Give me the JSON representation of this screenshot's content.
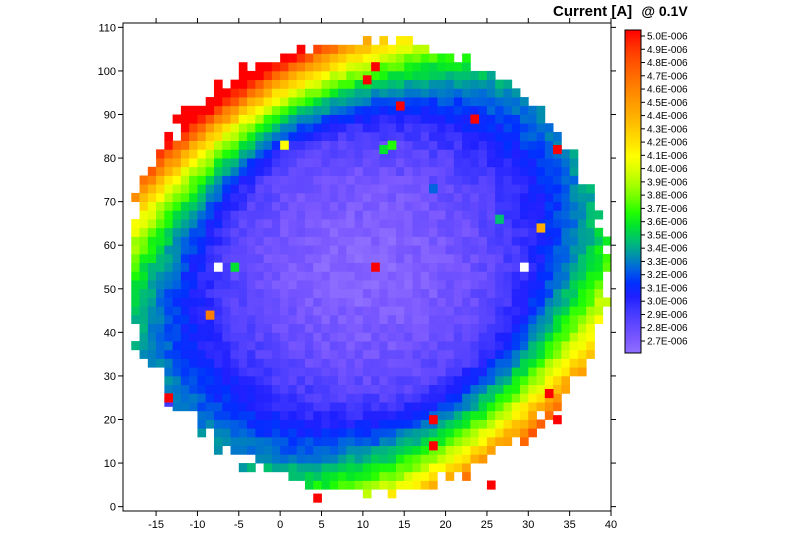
{
  "chart_data": {
    "type": "heatmap",
    "title": "Current [A]",
    "title_suffix": "@ 0.1V",
    "xlabel": "",
    "ylabel": "",
    "xlim": [
      -19,
      40
    ],
    "ylim": [
      -1,
      111
    ],
    "x_ticks": [
      -15,
      -10,
      -5,
      0,
      5,
      10,
      15,
      20,
      25,
      30,
      35,
      40
    ],
    "y_ticks": [
      0,
      10,
      20,
      30,
      40,
      50,
      60,
      70,
      80,
      90,
      100,
      110
    ],
    "grid": false,
    "wafer_map": {
      "center_x": 10.5,
      "center_y": 55,
      "radius_x": 29,
      "radius_y": 52,
      "cell_step_x": 1,
      "cell_step_y": 2,
      "value_min": 2.7e-06,
      "value_max": 5e-06,
      "description_values": "center approx 2.75E-006 rising to approx 3.4E-006 near edge; upper-left and lower-right edge regions approx 3.7E-006 to 5.0E-006"
    },
    "outliers": [
      {
        "x": -8,
        "y": 54,
        "value": null
      },
      {
        "x": 29,
        "y": 54,
        "value": null
      },
      {
        "x": 11,
        "y": 54,
        "value": 5e-06
      },
      {
        "x": -6,
        "y": 54,
        "value": 3.6e-06
      },
      {
        "x": -9,
        "y": 43,
        "value": 4.6e-06
      },
      {
        "x": 0,
        "y": 82,
        "value": 4.1e-06
      },
      {
        "x": 12,
        "y": 81,
        "value": 3.6e-06
      },
      {
        "x": 13,
        "y": 82,
        "value": 3.7e-06
      },
      {
        "x": 11,
        "y": 100,
        "value": 5e-06
      },
      {
        "x": 10,
        "y": 97,
        "value": 5e-06
      },
      {
        "x": 14,
        "y": 91,
        "value": 5e-06
      },
      {
        "x": 23,
        "y": 88,
        "value": 5e-06
      },
      {
        "x": 33,
        "y": 81,
        "value": 5e-06
      },
      {
        "x": 18,
        "y": 72,
        "value": 3.3e-06
      },
      {
        "x": 26,
        "y": 65,
        "value": 3.5e-06
      },
      {
        "x": 31,
        "y": 63,
        "value": 4.4e-06
      },
      {
        "x": 18,
        "y": 19,
        "value": 5e-06
      },
      {
        "x": 18,
        "y": 13,
        "value": 5e-06
      },
      {
        "x": 4,
        "y": 1,
        "value": 5e-06
      },
      {
        "x": 25,
        "y": 4,
        "value": 5e-06
      },
      {
        "x": 32,
        "y": 25,
        "value": 5e-06
      },
      {
        "x": 33,
        "y": 19,
        "value": 5e-06
      },
      {
        "x": -14,
        "y": 23,
        "value": 3e-06
      },
      {
        "x": -14,
        "y": 24,
        "value": 5e-06
      }
    ],
    "colorbar": {
      "labels": [
        "5.0E-006",
        "4.9E-006",
        "4.8E-006",
        "4.7E-006",
        "4.6E-006",
        "4.5E-006",
        "4.4E-006",
        "4.3E-006",
        "4.2E-006",
        "4.1E-006",
        "4.0E-006",
        "3.9E-006",
        "3.8E-006",
        "3.7E-006",
        "3.6E-006",
        "3.5E-006",
        "3.4E-006",
        "3.3E-006",
        "3.2E-006",
        "3.1E-006",
        "3.0E-006",
        "2.9E-006",
        "2.8E-006",
        "2.7E-006"
      ],
      "colors": [
        "#ff0000",
        "#ff2a00",
        "#ff4a00",
        "#ff6400",
        "#ff7e00",
        "#ff9600",
        "#ffad00",
        "#ffc800",
        "#ffe200",
        "#ffff00",
        "#d8ff00",
        "#a8ff00",
        "#6cff00",
        "#22ff00",
        "#00e230",
        "#00c070",
        "#0094a8",
        "#0064e0",
        "#0030ff",
        "#2020ff",
        "#4038ff",
        "#6048ff",
        "#7a58ff",
        "#9070ff"
      ],
      "position": "right"
    }
  }
}
